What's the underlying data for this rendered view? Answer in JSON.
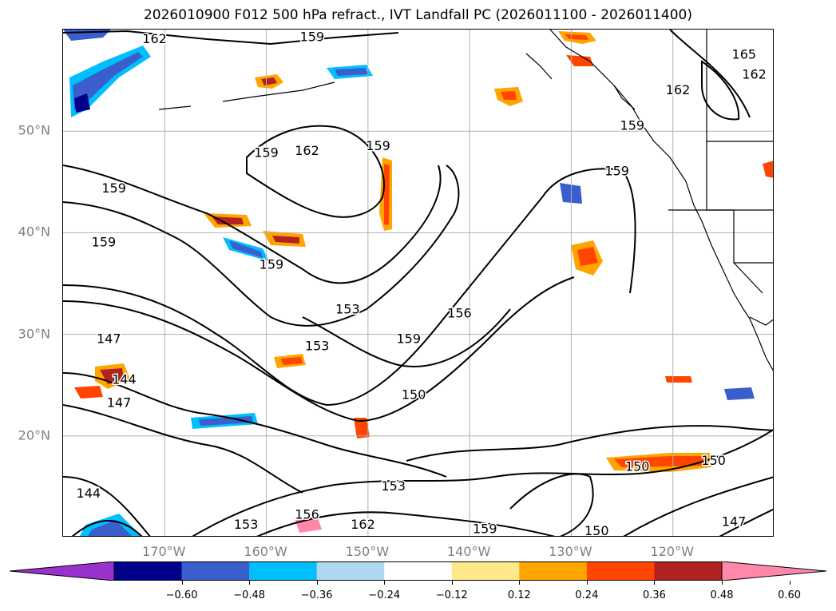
{
  "title": "2026010900 F012 500 hPa refract., IVT Landfall PC (2026011100 - 2026011400)",
  "lat_labels": [
    {
      "text": "50°N",
      "lat": 50
    },
    {
      "text": "40°N",
      "lat": 40
    },
    {
      "text": "30°N",
      "lat": 30
    },
    {
      "text": "20°N",
      "lat": 20
    }
  ],
  "lon_labels": [
    {
      "text": "170°W",
      "lon": -170
    },
    {
      "text": "160°W",
      "lon": -160
    },
    {
      "text": "150°W",
      "lon": -150
    },
    {
      "text": "140°W",
      "lon": -140
    },
    {
      "text": "130°W",
      "lon": -130
    },
    {
      "text": "120°W",
      "lon": -120
    }
  ],
  "map_extent": {
    "lon_min": -180,
    "lon_max": -110,
    "lat_min": 10,
    "lat_max": 60
  },
  "contour_labels": [
    {
      "text": "162",
      "lon": -171.0,
      "lat": 59.0
    },
    {
      "text": "159",
      "lon": -155.5,
      "lat": 59.2
    },
    {
      "text": "165",
      "lon": -113.0,
      "lat": 57.5
    },
    {
      "text": "162",
      "lon": -112.0,
      "lat": 55.5
    },
    {
      "text": "162",
      "lon": -119.5,
      "lat": 54.0
    },
    {
      "text": "159",
      "lon": -124.0,
      "lat": 50.5
    },
    {
      "text": "159",
      "lon": -160.0,
      "lat": 47.8
    },
    {
      "text": "162",
      "lon": -156.0,
      "lat": 48.0
    },
    {
      "text": "159",
      "lon": -149.0,
      "lat": 48.5
    },
    {
      "text": "159",
      "lon": -125.5,
      "lat": 46.0
    },
    {
      "text": "159",
      "lon": -175.0,
      "lat": 44.3
    },
    {
      "text": "159",
      "lon": -176.0,
      "lat": 39.0
    },
    {
      "text": "159",
      "lon": -159.5,
      "lat": 36.8
    },
    {
      "text": "153",
      "lon": -152.0,
      "lat": 32.4
    },
    {
      "text": "147",
      "lon": -175.5,
      "lat": 29.5
    },
    {
      "text": "159",
      "lon": -146.0,
      "lat": 29.5
    },
    {
      "text": "156",
      "lon": -141.0,
      "lat": 32.0
    },
    {
      "text": "153",
      "lon": -155.0,
      "lat": 28.8
    },
    {
      "text": "144",
      "lon": -174.0,
      "lat": 25.5
    },
    {
      "text": "147",
      "lon": -174.5,
      "lat": 23.2
    },
    {
      "text": "150",
      "lon": -145.5,
      "lat": 24.0
    },
    {
      "text": "150",
      "lon": -123.5,
      "lat": 16.9
    },
    {
      "text": "150",
      "lon": -116.0,
      "lat": 17.5
    },
    {
      "text": "144",
      "lon": -177.5,
      "lat": 14.3
    },
    {
      "text": "153",
      "lon": -147.5,
      "lat": 15.0
    },
    {
      "text": "156",
      "lon": -156.0,
      "lat": 12.2
    },
    {
      "text": "153",
      "lon": -162.0,
      "lat": 11.2
    },
    {
      "text": "162",
      "lon": -150.5,
      "lat": 11.2
    },
    {
      "text": "159",
      "lon": -138.5,
      "lat": 10.8
    },
    {
      "text": "150",
      "lon": -127.5,
      "lat": 10.6
    },
    {
      "text": "147",
      "lon": -114.0,
      "lat": 11.5
    }
  ],
  "colorbar": {
    "ticks": [
      "−0.60",
      "−0.48",
      "−0.36",
      "−0.24",
      "−0.12",
      "0.12",
      "0.24",
      "0.36",
      "0.48",
      "0.60"
    ],
    "colors": [
      "#9932cc",
      "#00008b",
      "#3a5fcd",
      "#00bfff",
      "#add8f0",
      "#ffffff",
      "#ffe88a",
      "#ffa500",
      "#ff4500",
      "#b22222",
      "#ff88aa"
    ]
  }
}
